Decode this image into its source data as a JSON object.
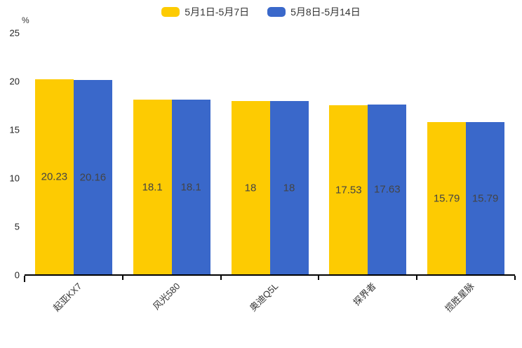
{
  "chart_data": {
    "type": "bar",
    "categories": [
      "起亚KX7",
      "风光580",
      "奥迪Q5L",
      "探界者",
      "揽胜星脉"
    ],
    "series": [
      {
        "name": "5月1日-5月7日",
        "color": "#FDCB02",
        "values": [
          20.23,
          18.1,
          18,
          17.53,
          15.79
        ]
      },
      {
        "name": "5月8日-5月14日",
        "color": "#3A68CA",
        "values": [
          20.16,
          18.1,
          18,
          17.63,
          15.79
        ]
      }
    ],
    "value_labels": [
      [
        "20.23",
        "18.1",
        "18",
        "17.53",
        "15.79"
      ],
      [
        "20.16",
        "18.1",
        "18",
        "17.63",
        "15.79"
      ]
    ],
    "title": "",
    "xlabel": "",
    "ylabel": "%",
    "yticks": [
      0,
      5,
      10,
      15,
      20,
      25
    ],
    "ylim": [
      0,
      25
    ],
    "legend_position": "top-center",
    "grid": false,
    "value_label_position": "inside-middle",
    "value_label_color": "#444444",
    "axis_color": "#000000",
    "background_color": "#ffffff"
  }
}
